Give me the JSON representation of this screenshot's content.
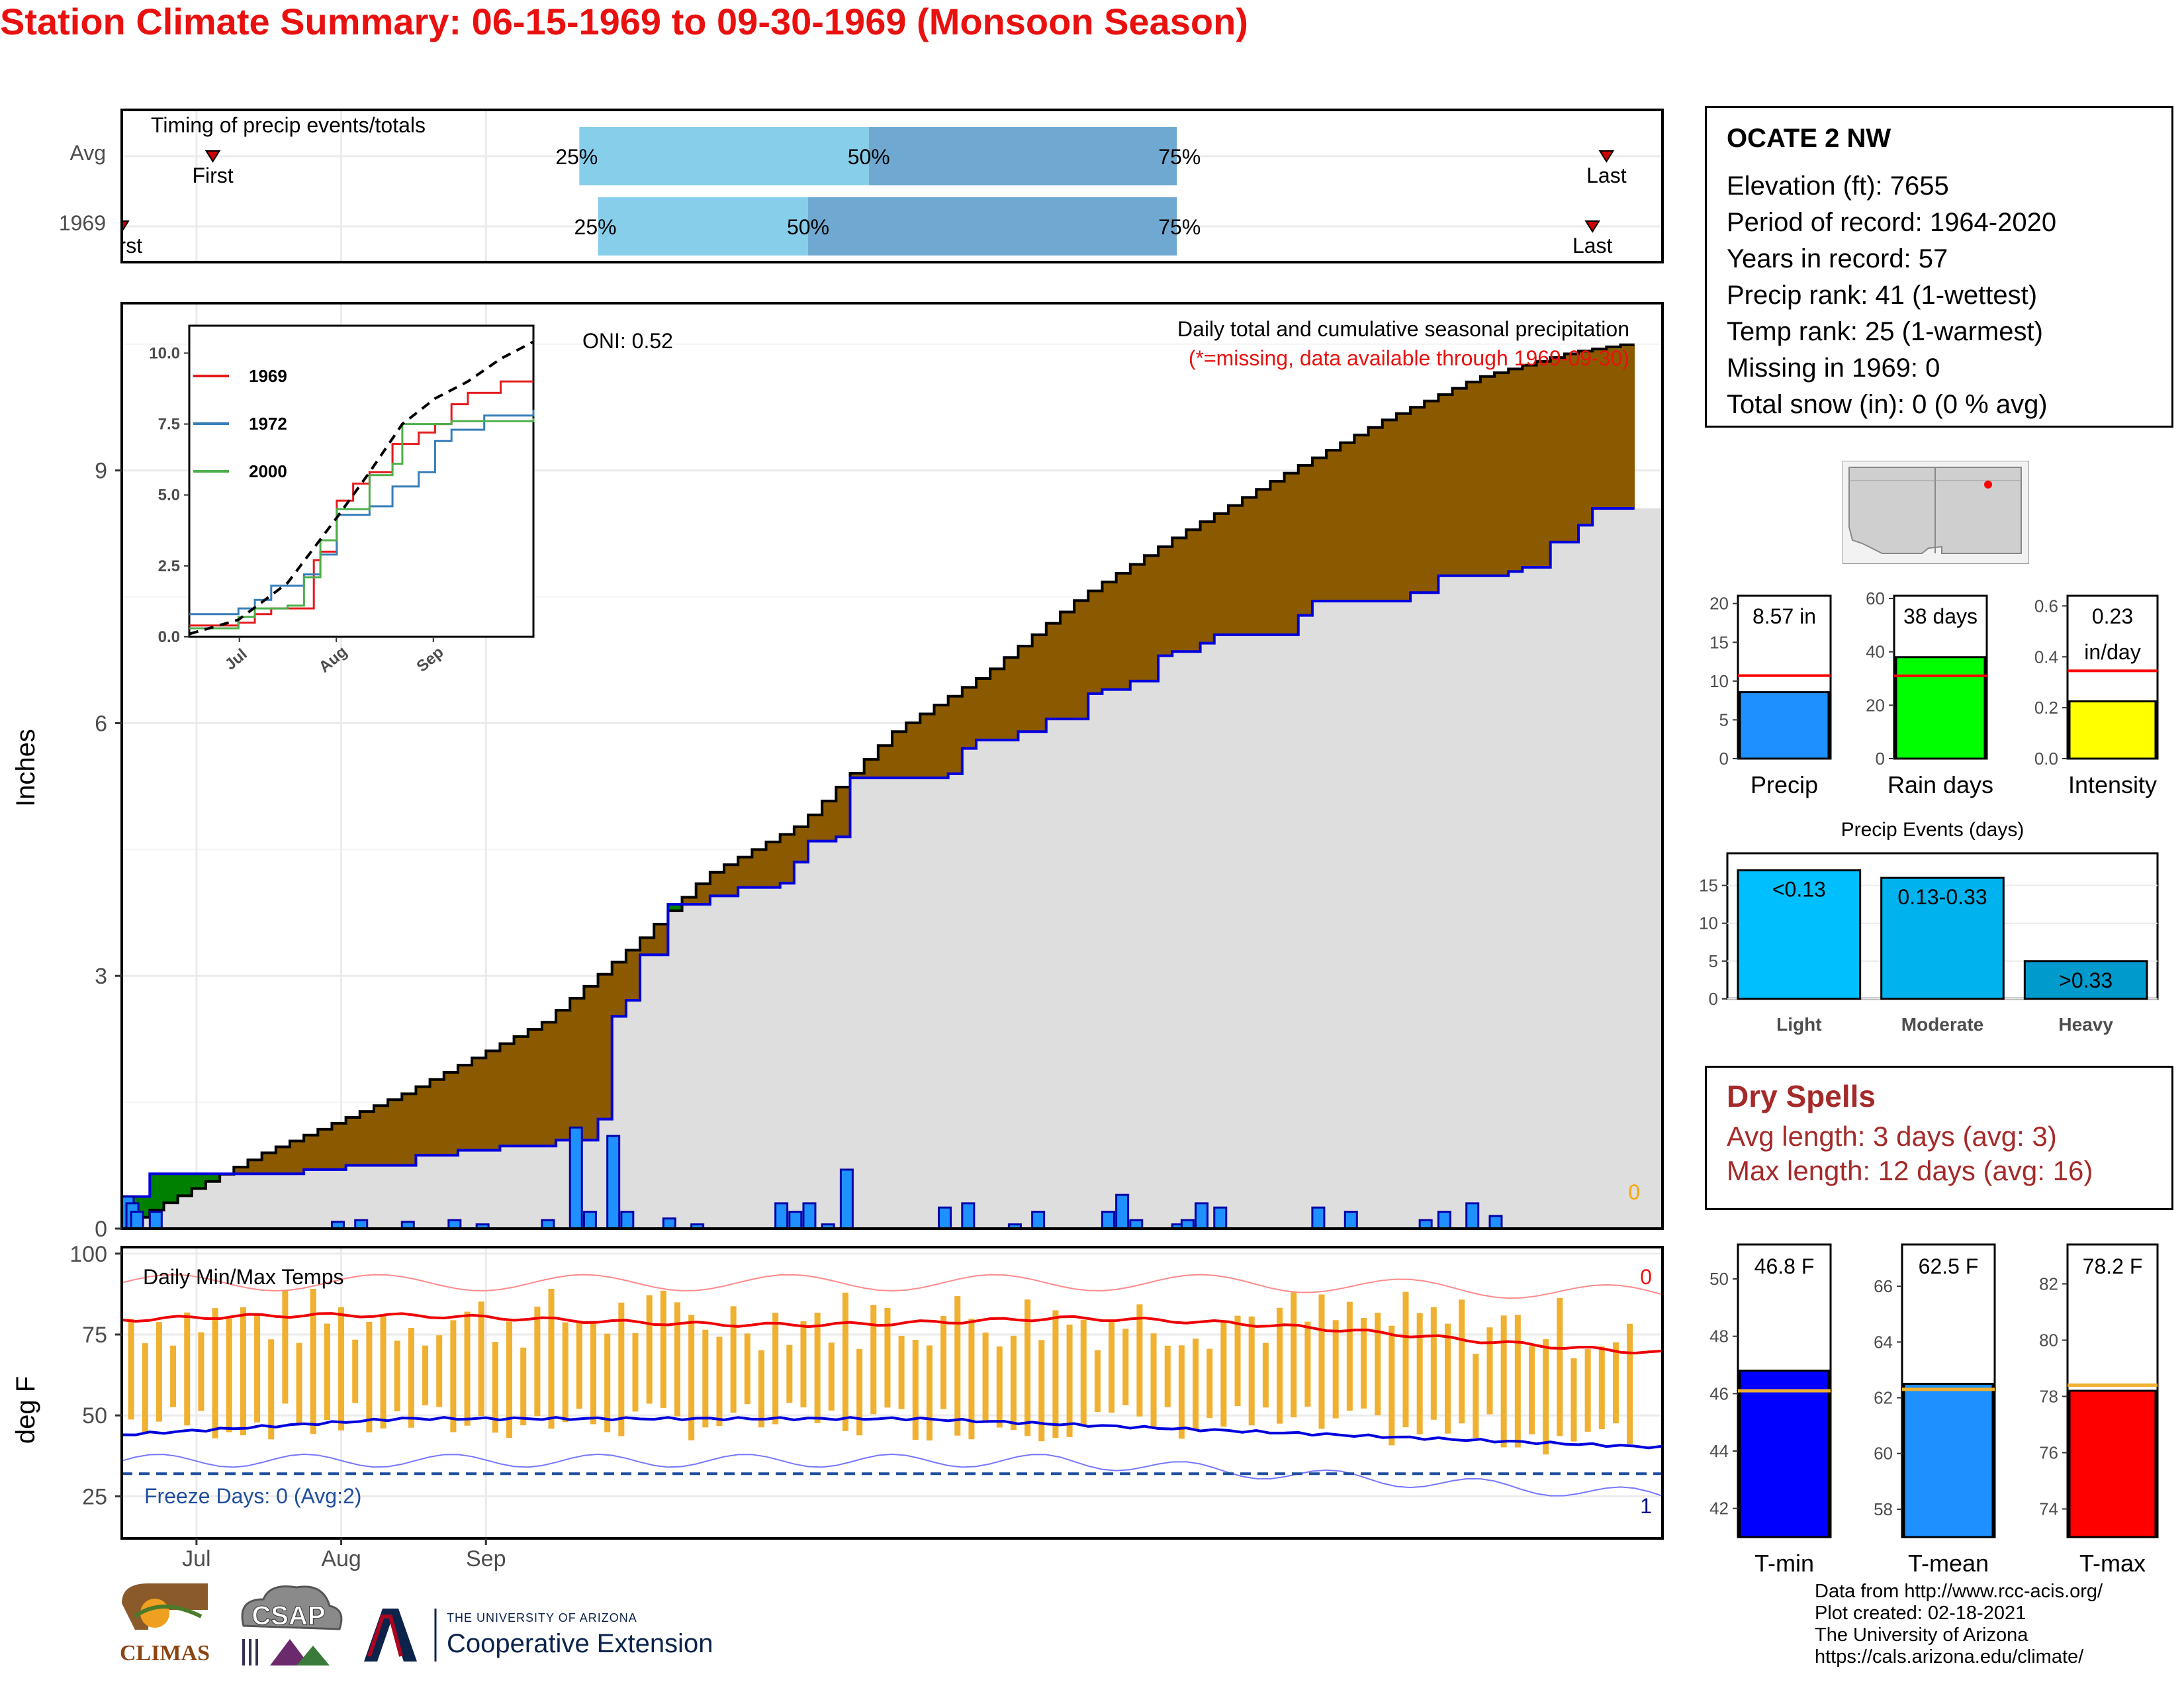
{
  "title": "Station Climate Summary: 06-15-1969 to 09-30-1969 (Monsoon Season)",
  "timing": {
    "label": "Timing of precip events/totals",
    "rows": [
      {
        "name": "Avg",
        "first": "First",
        "last": "Last",
        "p25": "25%",
        "p50": "50%",
        "p75": "75%",
        "first_day": 19.5,
        "p25_day": 98,
        "p50_day": 160,
        "p75_day": 226,
        "last_day": 318
      },
      {
        "name": "1969",
        "first": "First",
        "last": "Last",
        "p25": "25%",
        "p50": "50%",
        "p75": "75%",
        "first_day": 0,
        "p25_day": 102,
        "p50_day": 147,
        "p75_day": 226,
        "last_day": 315
      }
    ]
  },
  "main": {
    "oni": "ONI: 0.52",
    "legend_title": "Daily total and cumulative seasonal precipitation",
    "missing_note": "(*=missing, data available through 1969-09-30)",
    "missing_count": "0",
    "ylabel": "Inches",
    "yticks": [
      "0",
      "3",
      "6",
      "9"
    ],
    "xticks": [
      "Jul",
      "Aug",
      "Sep"
    ]
  },
  "inset": {
    "yticks": [
      "0.0",
      "2.5",
      "5.0",
      "7.5",
      "10.0"
    ],
    "xticks": [
      "Jul",
      "Aug",
      "Sep"
    ],
    "series": [
      {
        "name": "1969",
        "color": "#e41a1c"
      },
      {
        "name": "1972",
        "color": "#377eb8"
      },
      {
        "name": "2000",
        "color": "#4daf4a"
      }
    ]
  },
  "station": {
    "name": "OCATE 2 NW",
    "lines": [
      "Elevation (ft): 7655",
      "Period of record: 1964-2020",
      "Years in record: 57",
      "Precip rank: 41 (1-wettest)",
      "Temp rank: 25 (1-warmest)",
      "Missing in 1969: 0",
      "Total snow (in): 0 (0 % avg)"
    ]
  },
  "summary_bars": [
    {
      "label": "Precip",
      "value_label": "8.57 in",
      "value": 8.57,
      "avg": 10.7,
      "color": "#1e90ff",
      "yticks": [
        "0",
        "5",
        "10",
        "15",
        "20"
      ],
      "ymax": 21
    },
    {
      "label": "Rain days",
      "value_label": "38 days",
      "value": 38,
      "avg": 31,
      "color": "#00ff00",
      "yticks": [
        "0",
        "20",
        "40",
        "60"
      ],
      "ymax": 61
    },
    {
      "label": "Intensity",
      "value_label": "0.23",
      "value_label2": "in/day",
      "value": 0.225,
      "avg": 0.345,
      "color": "#ffff00",
      "yticks": [
        "0.0",
        "0.2",
        "0.4",
        "0.6"
      ],
      "ymax": 0.64
    }
  ],
  "events": {
    "title": "Precip Events (days)",
    "yticks": [
      "0",
      "5",
      "10",
      "15"
    ],
    "bars": [
      {
        "label": "Light",
        "value_label": "<0.13",
        "value": 17,
        "color": "#00bfff"
      },
      {
        "label": "Moderate",
        "value_label": "0.13-0.33",
        "value": 16,
        "color": "#00b2ee"
      },
      {
        "label": "Heavy",
        "value_label": ">0.33",
        "value": 5,
        "color": "#009acd"
      }
    ]
  },
  "dry_spells": {
    "title": "Dry Spells",
    "avg_length": "Avg length: 3 days (avg: 3)",
    "max_length": "Max length: 12 days (avg: 16)"
  },
  "temps": {
    "label": "Daily Min/Max Temps",
    "ylabel": "deg F",
    "yticks": [
      "25",
      "50",
      "75",
      "100"
    ],
    "freeze": "Freeze Days: 0 (Avg:2)",
    "missing_top": "0",
    "missing_bottom": "1",
    "bars": [
      {
        "label": "T-min",
        "value_label": "46.8 F",
        "value": 46.8,
        "avg": 46.1,
        "color": "#0000ff",
        "yticks": [
          "42",
          "44",
          "46",
          "48",
          "50"
        ],
        "ymin": 41,
        "ymax": 51.2
      },
      {
        "label": "T-mean",
        "value_label": "62.5 F",
        "value": 62.5,
        "avg": 62.3,
        "color": "#1e90ff",
        "yticks": [
          "58",
          "60",
          "62",
          "64",
          "66"
        ],
        "ymin": 57,
        "ymax": 67.5
      },
      {
        "label": "T-max",
        "value_label": "78.2 F",
        "value": 78.2,
        "avg": 78.4,
        "color": "#ff0000",
        "yticks": [
          "74",
          "76",
          "78",
          "80",
          "82"
        ],
        "ymin": 73,
        "ymax": 83.4
      }
    ]
  },
  "chart_data": [
    {
      "type": "bar",
      "title": "Timing of precip events/totals",
      "categories": [
        "Avg",
        "1969"
      ],
      "series": [
        {
          "name": "First",
          "values": [
            19.5,
            0
          ]
        },
        {
          "name": "25%",
          "values": [
            98,
            102
          ]
        },
        {
          "name": "50%",
          "values": [
            160,
            147
          ]
        },
        {
          "name": "75%",
          "values": [
            226,
            226
          ]
        },
        {
          "name": "Last",
          "values": [
            318,
            315
          ]
        }
      ]
    },
    {
      "type": "area",
      "title": "Daily total and cumulative seasonal precipitation",
      "ylabel": "Inches",
      "ylim": [
        0,
        11.3
      ],
      "x_labels": [
        "Jul",
        "Aug",
        "Sep"
      ],
      "cumulative_1969": [
        [
          0,
          0.38
        ],
        [
          3,
          0.38
        ],
        [
          6,
          0.65
        ],
        [
          28,
          0.65
        ],
        [
          38,
          0.7
        ],
        [
          48,
          0.75
        ],
        [
          61,
          0.87
        ],
        [
          70,
          0.93
        ],
        [
          80,
          0.98
        ],
        [
          92,
          1.05
        ],
        [
          101,
          1.3
        ],
        [
          103,
          1.3
        ],
        [
          104,
          2.52
        ],
        [
          105,
          2.52
        ],
        [
          106,
          2.71
        ],
        [
          110,
          2.71
        ],
        [
          111,
          3.25
        ],
        [
          115,
          3.38
        ],
        [
          116,
          3.85
        ],
        [
          120,
          3.85
        ],
        [
          125,
          3.95
        ],
        [
          130,
          4.05
        ],
        [
          140,
          4.1
        ],
        [
          142,
          4.35
        ],
        [
          145,
          4.35
        ],
        [
          147,
          4.6
        ],
        [
          152,
          4.65
        ],
        [
          155,
          5.35
        ],
        [
          160,
          5.35
        ],
        [
          175,
          5.4
        ],
        [
          178,
          5.7
        ],
        [
          182,
          5.8
        ],
        [
          190,
          5.9
        ],
        [
          198,
          6.05
        ],
        [
          205,
          6.1
        ],
        [
          207,
          6.35
        ],
        [
          208,
          6.4
        ],
        [
          215,
          6.5
        ],
        [
          220,
          6.8
        ],
        [
          225,
          6.85
        ],
        [
          231,
          6.95
        ],
        [
          233,
          7.05
        ],
        [
          240,
          7.05
        ],
        [
          248,
          7.05
        ],
        [
          250,
          7.2
        ],
        [
          252,
          7.28
        ],
        [
          255,
          7.45
        ],
        [
          260,
          7.45
        ],
        [
          270,
          7.45
        ],
        [
          275,
          7.55
        ],
        [
          279,
          7.55
        ],
        [
          280,
          7.75
        ],
        [
          290,
          7.75
        ],
        [
          295,
          7.8
        ],
        [
          300,
          7.85
        ],
        [
          305,
          8.15
        ],
        [
          310,
          8.35
        ],
        [
          315,
          8.55
        ],
        [
          322,
          8.57
        ]
      ],
      "average_cumulative": [
        [
          0,
          0.05
        ],
        [
          30,
          0.9
        ],
        [
          60,
          1.6
        ],
        [
          90,
          2.45
        ],
        [
          110,
          3.4
        ],
        [
          125,
          4.2
        ],
        [
          145,
          4.8
        ],
        [
          165,
          5.9
        ],
        [
          185,
          6.6
        ],
        [
          205,
          7.5
        ],
        [
          225,
          8.2
        ],
        [
          250,
          9.0
        ],
        [
          270,
          9.6
        ],
        [
          290,
          10.1
        ],
        [
          310,
          10.4
        ],
        [
          322,
          10.5
        ]
      ],
      "daily": [
        [
          0,
          0.38
        ],
        [
          1,
          0.3
        ],
        [
          2,
          0.2
        ],
        [
          6,
          0.2
        ],
        [
          45,
          0.08
        ],
        [
          50,
          0.1
        ],
        [
          60,
          0.08
        ],
        [
          70,
          0.1
        ],
        [
          76,
          0.05
        ],
        [
          90,
          0.1
        ],
        [
          96,
          1.2
        ],
        [
          99,
          0.2
        ],
        [
          104,
          1.1
        ],
        [
          107,
          0.2
        ],
        [
          116,
          0.12
        ],
        [
          122,
          0.05
        ],
        [
          140,
          0.3
        ],
        [
          143,
          0.2
        ],
        [
          146,
          0.3
        ],
        [
          150,
          0.05
        ],
        [
          154,
          0.7
        ],
        [
          175,
          0.25
        ],
        [
          180,
          0.3
        ],
        [
          190,
          0.05
        ],
        [
          195,
          0.2
        ],
        [
          210,
          0.2
        ],
        [
          213,
          0.4
        ],
        [
          216,
          0.1
        ],
        [
          225,
          0.05
        ],
        [
          227,
          0.1
        ],
        [
          230,
          0.3
        ],
        [
          234,
          0.25
        ],
        [
          255,
          0.25
        ],
        [
          262,
          0.2
        ],
        [
          278,
          0.1
        ],
        [
          282,
          0.2
        ],
        [
          288,
          0.3
        ],
        [
          293,
          0.15
        ]
      ],
      "legend_notes": [
        "ONI: 0.52",
        "(*=missing, data available through 1969-09-30)"
      ]
    },
    {
      "type": "line",
      "x": [
        "Jul",
        "Aug",
        "Sep"
      ],
      "ylim": [
        0,
        10.5
      ],
      "series": [
        {
          "name": "1969",
          "values": [
            [
              0,
              0.4
            ],
            [
              10,
              0.4
            ],
            [
              15,
              0.5
            ],
            [
              20,
              0.8
            ],
            [
              25,
              1.0
            ],
            [
              35,
              1.0
            ],
            [
              38,
              2.7
            ],
            [
              40,
              3.0
            ],
            [
              45,
              4.8
            ],
            [
              50,
              5.4
            ],
            [
              55,
              5.8
            ],
            [
              62,
              6.8
            ],
            [
              70,
              7.2
            ],
            [
              75,
              7.5
            ],
            [
              80,
              8.2
            ],
            [
              85,
              8.6
            ],
            [
              95,
              9.0
            ],
            [
              105,
              9.0
            ]
          ]
        },
        {
          "name": "1972",
          "values": [
            [
              0,
              0.8
            ],
            [
              10,
              0.8
            ],
            [
              15,
              1.0
            ],
            [
              20,
              1.3
            ],
            [
              25,
              1.8
            ],
            [
              35,
              2.2
            ],
            [
              40,
              2.9
            ],
            [
              45,
              4.3
            ],
            [
              55,
              4.6
            ],
            [
              62,
              5.3
            ],
            [
              70,
              5.8
            ],
            [
              75,
              6.9
            ],
            [
              80,
              7.3
            ],
            [
              90,
              7.8
            ],
            [
              105,
              8.0
            ]
          ]
        },
        {
          "name": "2000",
          "values": [
            [
              0,
              0.3
            ],
            [
              10,
              0.3
            ],
            [
              15,
              0.7
            ],
            [
              20,
              1.0
            ],
            [
              30,
              1.1
            ],
            [
              35,
              2.1
            ],
            [
              40,
              3.4
            ],
            [
              45,
              4.5
            ],
            [
              55,
              5.7
            ],
            [
              62,
              6.1
            ],
            [
              65,
              7.5
            ],
            [
              75,
              7.5
            ],
            [
              80,
              7.6
            ],
            [
              90,
              7.6
            ],
            [
              105,
              7.7
            ]
          ]
        },
        {
          "name": "Avg",
          "values": [
            [
              0,
              0.1
            ],
            [
              15,
              0.6
            ],
            [
              30,
              1.9
            ],
            [
              45,
              4.2
            ],
            [
              55,
              5.8
            ],
            [
              65,
              7.5
            ],
            [
              75,
              8.4
            ],
            [
              85,
              9.0
            ],
            [
              95,
              9.8
            ],
            [
              105,
              10.4
            ]
          ]
        }
      ]
    },
    {
      "type": "bar",
      "categories": [
        "Precip",
        "Rain days",
        "Intensity"
      ],
      "values": [
        8.57,
        38,
        0.23
      ]
    },
    {
      "type": "bar",
      "title": "Precip Events (days)",
      "categories": [
        "Light",
        "Moderate",
        "Heavy"
      ],
      "values": [
        17,
        16,
        5
      ]
    },
    {
      "type": "line",
      "title": "Daily Min/Max Temps",
      "ylabel": "deg F",
      "ylim": [
        12,
        102
      ],
      "x_labels": [
        "Jul",
        "Aug",
        "Sep"
      ],
      "freeze_line": 32
    },
    {
      "type": "bar",
      "categories": [
        "T-min",
        "T-mean",
        "T-max"
      ],
      "values": [
        46.8,
        62.5,
        78.2
      ]
    }
  ]
}
